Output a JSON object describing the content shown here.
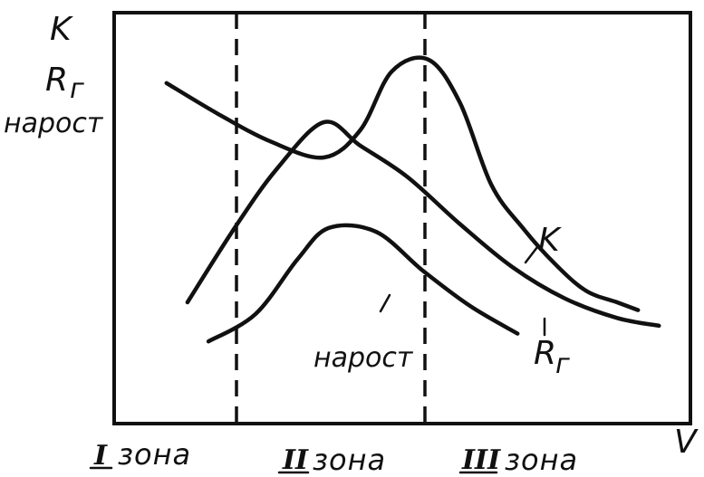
{
  "chart_data": {
    "type": "line",
    "ylabel_lines": [
      "K",
      "R",
      "г",
      "нарост"
    ],
    "xlabel": "V",
    "grid": false,
    "zones": [
      {
        "numeral": "I",
        "label": "зона"
      },
      {
        "numeral": "II",
        "label": "зона"
      },
      {
        "numeral": "III",
        "label": "зона"
      }
    ],
    "series": [
      {
        "name": "K",
        "label_main": "K",
        "label_sub": "",
        "points": [
          [
            0.1,
            0.87
          ],
          [
            0.2,
            0.79
          ],
          [
            0.3,
            0.72
          ],
          [
            0.4,
            0.68
          ],
          [
            0.47,
            0.75
          ],
          [
            0.53,
            0.9
          ],
          [
            0.6,
            0.93
          ],
          [
            0.66,
            0.82
          ],
          [
            0.72,
            0.61
          ],
          [
            0.78,
            0.5
          ],
          [
            0.84,
            0.41
          ],
          [
            0.9,
            0.34
          ],
          [
            0.96,
            0.31
          ],
          [
            1.0,
            0.29
          ]
        ]
      },
      {
        "name": "Rг",
        "label_main": "R",
        "label_sub": "г",
        "points": [
          [
            0.14,
            0.31
          ],
          [
            0.23,
            0.5
          ],
          [
            0.31,
            0.65
          ],
          [
            0.4,
            0.77
          ],
          [
            0.47,
            0.71
          ],
          [
            0.56,
            0.63
          ],
          [
            0.66,
            0.51
          ],
          [
            0.76,
            0.4
          ],
          [
            0.86,
            0.32
          ],
          [
            0.96,
            0.27
          ],
          [
            1.04,
            0.25
          ]
        ]
      },
      {
        "name": "нарост",
        "label_main": "нарост",
        "label_sub": "",
        "points": [
          [
            0.18,
            0.21
          ],
          [
            0.27,
            0.28
          ],
          [
            0.35,
            0.42
          ],
          [
            0.41,
            0.5
          ],
          [
            0.5,
            0.49
          ],
          [
            0.59,
            0.39
          ],
          [
            0.68,
            0.3
          ],
          [
            0.77,
            0.23
          ]
        ]
      }
    ]
  }
}
